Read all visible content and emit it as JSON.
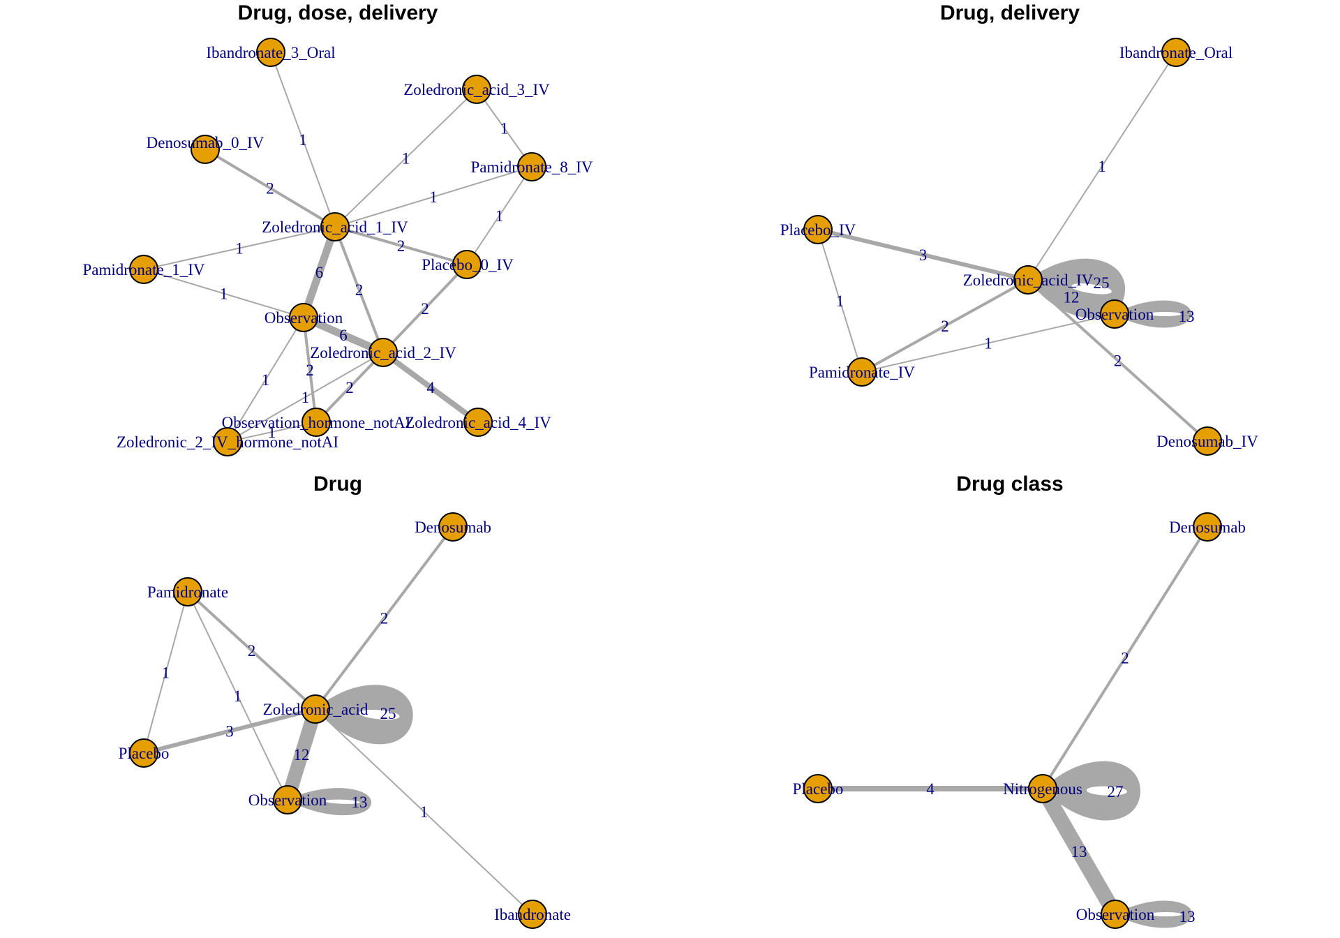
{
  "panels": [
    {
      "title": "Drug, dose, delivery",
      "nodes": [
        {
          "id": "Ibandronate_3_Oral"
        },
        {
          "id": "Zoledronic_acid_3_IV"
        },
        {
          "id": "Denosumab_0_IV"
        },
        {
          "id": "Pamidronate_8_IV"
        },
        {
          "id": "Zoledronic_acid_1_IV"
        },
        {
          "id": "Pamidronate_1_IV"
        },
        {
          "id": "Placebo_0_IV"
        },
        {
          "id": "Observation"
        },
        {
          "id": "Zoledronic_acid_2_IV"
        },
        {
          "id": "Observation_hormone_notAI"
        },
        {
          "id": "Zoledronic_acid_4_IV"
        },
        {
          "id": "Zoledronic_2_IV_hormone_notAI"
        }
      ],
      "edges": [
        {
          "from": "Ibandronate_3_Oral",
          "to": "Zoledronic_acid_1_IV",
          "weight": 1
        },
        {
          "from": "Zoledronic_acid_3_IV",
          "to": "Zoledronic_acid_1_IV",
          "weight": 1
        },
        {
          "from": "Zoledronic_acid_3_IV",
          "to": "Pamidronate_8_IV",
          "weight": 1
        },
        {
          "from": "Denosumab_0_IV",
          "to": "Zoledronic_acid_1_IV",
          "weight": 2
        },
        {
          "from": "Pamidronate_8_IV",
          "to": "Zoledronic_acid_1_IV",
          "weight": 1
        },
        {
          "from": "Pamidronate_8_IV",
          "to": "Placebo_0_IV",
          "weight": 1
        },
        {
          "from": "Pamidronate_1_IV",
          "to": "Zoledronic_acid_1_IV",
          "weight": 1
        },
        {
          "from": "Zoledronic_acid_1_IV",
          "to": "Placebo_0_IV",
          "weight": 2
        },
        {
          "from": "Zoledronic_acid_1_IV",
          "to": "Observation",
          "weight": 6
        },
        {
          "from": "Zoledronic_acid_1_IV",
          "to": "Zoledronic_acid_2_IV",
          "weight": 2
        },
        {
          "from": "Pamidronate_1_IV",
          "to": "Observation",
          "weight": 1
        },
        {
          "from": "Placebo_0_IV",
          "to": "Zoledronic_acid_2_IV",
          "weight": 2
        },
        {
          "from": "Observation",
          "to": "Zoledronic_acid_2_IV",
          "weight": 6
        },
        {
          "from": "Observation",
          "to": "Observation_hormone_notAI",
          "weight": 2
        },
        {
          "from": "Observation",
          "to": "Zoledronic_2_IV_hormone_notAI",
          "weight": 1
        },
        {
          "from": "Zoledronic_acid_2_IV",
          "to": "Zoledronic_acid_4_IV",
          "weight": 4
        },
        {
          "from": "Zoledronic_acid_2_IV",
          "to": "Observation_hormone_notAI",
          "weight": 2
        },
        {
          "from": "Zoledronic_acid_2_IV",
          "to": "Zoledronic_2_IV_hormone_notAI",
          "weight": 1
        },
        {
          "from": "Observation_hormone_notAI",
          "to": "Zoledronic_2_IV_hormone_notAI",
          "weight": 1
        }
      ]
    },
    {
      "title": "Drug, delivery",
      "nodes": [
        {
          "id": "Ibandronate_Oral"
        },
        {
          "id": "Placebo_IV"
        },
        {
          "id": "Zoledronic_acid_IV"
        },
        {
          "id": "Observation"
        },
        {
          "id": "Pamidronate_IV"
        },
        {
          "id": "Denosumab_IV"
        }
      ],
      "edges": [
        {
          "from": "Ibandronate_Oral",
          "to": "Zoledronic_acid_IV",
          "weight": 1
        },
        {
          "from": "Placebo_IV",
          "to": "Zoledronic_acid_IV",
          "weight": 3
        },
        {
          "from": "Placebo_IV",
          "to": "Pamidronate_IV",
          "weight": 1
        },
        {
          "from": "Pamidronate_IV",
          "to": "Zoledronic_acid_IV",
          "weight": 2
        },
        {
          "from": "Pamidronate_IV",
          "to": "Observation",
          "weight": 1
        },
        {
          "from": "Zoledronic_acid_IV",
          "to": "Observation",
          "weight": 12
        },
        {
          "from": "Zoledronic_acid_IV",
          "to": "Denosumab_IV",
          "weight": 2
        },
        {
          "from": "Zoledronic_acid_IV",
          "to": "Zoledronic_acid_IV",
          "weight": 25
        },
        {
          "from": "Observation",
          "to": "Observation",
          "weight": 13
        }
      ]
    },
    {
      "title": "Drug",
      "nodes": [
        {
          "id": "Denosumab"
        },
        {
          "id": "Pamidronate"
        },
        {
          "id": "Zoledronic_acid"
        },
        {
          "id": "Placebo"
        },
        {
          "id": "Observation"
        },
        {
          "id": "Ibandronate"
        }
      ],
      "edges": [
        {
          "from": "Denosumab",
          "to": "Zoledronic_acid",
          "weight": 2
        },
        {
          "from": "Pamidronate",
          "to": "Zoledronic_acid",
          "weight": 2
        },
        {
          "from": "Pamidronate",
          "to": "Placebo",
          "weight": 1
        },
        {
          "from": "Pamidronate",
          "to": "Observation",
          "weight": 1
        },
        {
          "from": "Placebo",
          "to": "Zoledronic_acid",
          "weight": 3
        },
        {
          "from": "Zoledronic_acid",
          "to": "Observation",
          "weight": 12
        },
        {
          "from": "Zoledronic_acid",
          "to": "Ibandronate",
          "weight": 1
        },
        {
          "from": "Zoledronic_acid",
          "to": "Zoledronic_acid",
          "weight": 25
        },
        {
          "from": "Observation",
          "to": "Observation",
          "weight": 13
        }
      ]
    },
    {
      "title": "Drug class",
      "nodes": [
        {
          "id": "Denosumab"
        },
        {
          "id": "Placebo"
        },
        {
          "id": "Nitrogenous"
        },
        {
          "id": "Observation"
        }
      ],
      "edges": [
        {
          "from": "Denosumab",
          "to": "Nitrogenous",
          "weight": 2
        },
        {
          "from": "Placebo",
          "to": "Nitrogenous",
          "weight": 4
        },
        {
          "from": "Nitrogenous",
          "to": "Observation",
          "weight": 13
        },
        {
          "from": "Nitrogenous",
          "to": "Nitrogenous",
          "weight": 27
        },
        {
          "from": "Observation",
          "to": "Observation",
          "weight": 13
        }
      ]
    }
  ]
}
